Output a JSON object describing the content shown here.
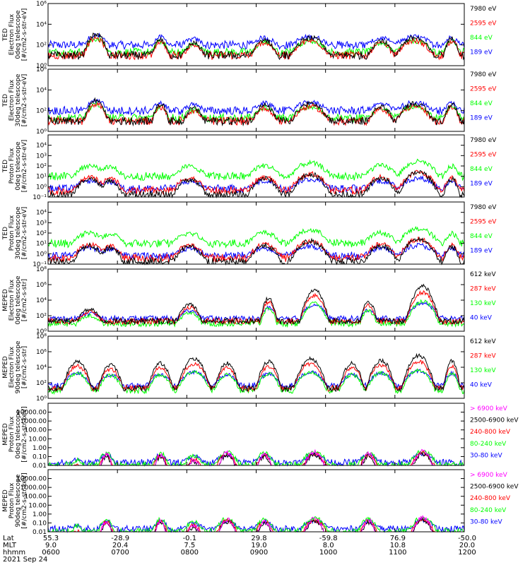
{
  "colors": {
    "blue": "#0000ff",
    "red": "#ff0000",
    "green": "#00ff00",
    "black": "#000000",
    "magenta": "#ff00ff"
  },
  "chart_data": [
    {
      "type": "line",
      "title": "",
      "ylabel": [
        "TED",
        "Electron Flux",
        "0deg telescope",
        "[#/cm2-s-str-eV]"
      ],
      "yscale": "log",
      "ylim": [
        1,
        1000000
      ],
      "yticks": [
        "10⁰",
        "10²",
        "10⁴",
        "10⁶"
      ],
      "ytick_values": [
        1,
        100,
        10000,
        1000000
      ],
      "series": [
        {
          "name": "7980 eV",
          "color": "#000000",
          "profile": "ted"
        },
        {
          "name": "2595 eV",
          "color": "#ff0000",
          "profile": "ted"
        },
        {
          "name": "844 eV",
          "color": "#00ff00",
          "profile": "ted"
        },
        {
          "name": "189 eV",
          "color": "#0000ff",
          "profile": "ted"
        }
      ]
    },
    {
      "type": "line",
      "title": "",
      "ylabel": [
        "TED",
        "Electron Flux",
        "30deg telescope",
        "[#/cm2-s-str-eV]"
      ],
      "yscale": "log",
      "ylim": [
        1,
        1000000
      ],
      "yticks": [
        "10⁰",
        "10²",
        "10⁴",
        "10⁶"
      ],
      "ytick_values": [
        1,
        100,
        10000,
        1000000
      ],
      "series": [
        {
          "name": "7980 eV",
          "color": "#000000",
          "profile": "ted"
        },
        {
          "name": "2595 eV",
          "color": "#ff0000",
          "profile": "ted"
        },
        {
          "name": "844 eV",
          "color": "#00ff00",
          "profile": "ted"
        },
        {
          "name": "189 eV",
          "color": "#0000ff",
          "profile": "ted"
        }
      ]
    },
    {
      "type": "line",
      "title": "",
      "ylabel": [
        "TED",
        "Proton Flux",
        "0deg telescope",
        "[#/cm2-s-str-eV]"
      ],
      "yscale": "log",
      "ylim": [
        0.1,
        100000
      ],
      "yticks": [
        "10⁻¹",
        "10⁰",
        "10¹",
        "10²",
        "10³",
        "10⁴"
      ],
      "ytick_values": [
        0.1,
        1,
        10,
        100,
        1000,
        10000
      ],
      "series": [
        {
          "name": "7980 eV",
          "color": "#000000",
          "profile": "tedp"
        },
        {
          "name": "2595 eV",
          "color": "#ff0000",
          "profile": "tedp"
        },
        {
          "name": "844 eV",
          "color": "#00ff00",
          "profile": "tedp"
        },
        {
          "name": "189 eV",
          "color": "#0000ff",
          "profile": "tedp"
        }
      ]
    },
    {
      "type": "line",
      "title": "",
      "ylabel": [
        "TED",
        "Proton Flux",
        "30deg telescope",
        "[#/cm2-s-str-eV]"
      ],
      "yscale": "log",
      "ylim": [
        0.1,
        100000
      ],
      "yticks": [
        "10⁻¹",
        "10⁰",
        "10¹",
        "10²",
        "10³",
        "10⁴"
      ],
      "ytick_values": [
        0.1,
        1,
        10,
        100,
        1000,
        10000
      ],
      "series": [
        {
          "name": "7980 eV",
          "color": "#000000",
          "profile": "tedp"
        },
        {
          "name": "2595 eV",
          "color": "#ff0000",
          "profile": "tedp"
        },
        {
          "name": "844 eV",
          "color": "#00ff00",
          "profile": "tedp"
        },
        {
          "name": "189 eV",
          "color": "#0000ff",
          "profile": "tedp"
        }
      ]
    },
    {
      "type": "line",
      "title": "",
      "ylabel": [
        "MEPED",
        "Electron Flux",
        "0deg telescope",
        "[#/cm2-s-str]"
      ],
      "yscale": "log",
      "ylim": [
        1,
        100000000
      ],
      "yticks": [
        "10⁰",
        "10²",
        "10⁴",
        "10⁶",
        "10⁸"
      ],
      "ytick_values": [
        1,
        100,
        10000,
        1000000,
        100000000
      ],
      "series": [
        {
          "name": "612 keV",
          "color": "#000000",
          "profile": "mepe0"
        },
        {
          "name": "287 keV",
          "color": "#ff0000",
          "profile": "mepe0"
        },
        {
          "name": "130 keV",
          "color": "#00ff00",
          "profile": "mepe0"
        },
        {
          "name": "40 keV",
          "color": "#0000ff",
          "profile": "mepe0"
        }
      ]
    },
    {
      "type": "line",
      "title": "",
      "ylabel": [
        "MEPED",
        "Electron Flux",
        "90deg telescope",
        "[#/cm2-s-str]"
      ],
      "yscale": "log",
      "ylim": [
        1,
        100000000
      ],
      "yticks": [
        "10⁰",
        "10²",
        "10⁴",
        "10⁶",
        "10⁸"
      ],
      "ytick_values": [
        1,
        100,
        10000,
        1000000,
        100000000
      ],
      "series": [
        {
          "name": "612 keV",
          "color": "#000000",
          "profile": "mepe90"
        },
        {
          "name": "287 keV",
          "color": "#ff0000",
          "profile": "mepe90"
        },
        {
          "name": "130 keV",
          "color": "#00ff00",
          "profile": "mepe90"
        },
        {
          "name": "40 keV",
          "color": "#0000ff",
          "profile": "mepe90"
        }
      ]
    },
    {
      "type": "line",
      "title": "",
      "ylabel": [
        "MEPED",
        "Proton Flux",
        "0deg telescope",
        "[#/cm2-s-str-keV]"
      ],
      "yscale": "log",
      "ylim": [
        0.01,
        100000
      ],
      "yticks": [
        "0.01",
        "0.10",
        "1.00",
        "10.00",
        "100.00",
        "1000.00",
        "10000.00"
      ],
      "ytick_values": [
        0.01,
        0.1,
        1,
        10,
        100,
        1000,
        10000
      ],
      "series": [
        {
          "name": "> 6900 keV",
          "color": "#ff00ff",
          "profile": "mepp"
        },
        {
          "name": "2500-6900 keV",
          "color": "#000000",
          "profile": "mepp"
        },
        {
          "name": "240-800 keV",
          "color": "#ff0000",
          "profile": "mepp"
        },
        {
          "name": "80-240 keV",
          "color": "#00ff00",
          "profile": "mepp"
        },
        {
          "name": "30-80 keV",
          "color": "#0000ff",
          "profile": "mepp"
        }
      ]
    },
    {
      "type": "line",
      "title": "",
      "ylabel": [
        "MEPED",
        "Proton Flux",
        "90deg telescope",
        "[#/cm2-s-str-keV]"
      ],
      "yscale": "log",
      "ylim": [
        0.01,
        100000
      ],
      "yticks": [
        "0.01",
        "0.10",
        "1.00",
        "10.00",
        "100.00",
        "1000.00",
        "10000.00"
      ],
      "ytick_values": [
        0.01,
        0.1,
        1,
        10,
        100,
        1000,
        10000
      ],
      "series": [
        {
          "name": "> 6900 keV",
          "color": "#ff00ff",
          "profile": "mepp"
        },
        {
          "name": "2500-6900 keV",
          "color": "#000000",
          "profile": "mepp"
        },
        {
          "name": "240-800 keV",
          "color": "#ff0000",
          "profile": "mepp"
        },
        {
          "name": "80-240 keV",
          "color": "#00ff00",
          "profile": "mepp"
        },
        {
          "name": "30-80 keV",
          "color": "#0000ff",
          "profile": "mepp"
        }
      ]
    }
  ],
  "xaxis": {
    "row_labels": [
      "Lat",
      "MLT",
      "hhmm"
    ],
    "ticks": [
      {
        "lat": "55.3",
        "mlt": "9.0",
        "hhmm": "0600"
      },
      {
        "lat": "-28.9",
        "mlt": "20.4",
        "hhmm": "0700"
      },
      {
        "lat": "-0.1",
        "mlt": "7.5",
        "hhmm": "0800"
      },
      {
        "lat": "29.8",
        "mlt": "19.0",
        "hhmm": "0900"
      },
      {
        "lat": "-59.8",
        "mlt": "8.0",
        "hhmm": "1000"
      },
      {
        "lat": "76.9",
        "mlt": "10.8",
        "hhmm": "1100"
      },
      {
        "lat": "-50.0",
        "mlt": "20.0",
        "hhmm": "1200"
      }
    ],
    "date": "2021 Sep 24"
  }
}
